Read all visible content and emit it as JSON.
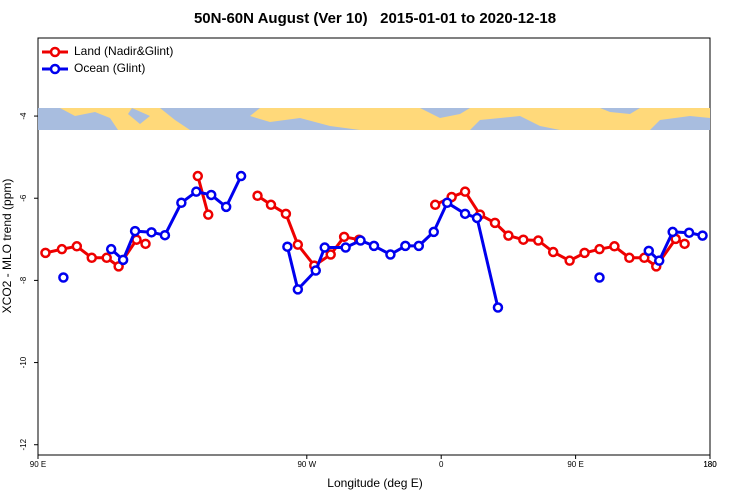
{
  "chart_data": {
    "type": "line",
    "title": "50N-60N August (Ver 10)   2015-01-01 to 2020-12-18",
    "xlabel": "Longitude (deg E)",
    "ylabel": "XCO2 - MLO trend (ppm)",
    "xlim": [
      -270,
      180
    ],
    "xticks": [
      {
        "value": -270,
        "label": "90 E"
      },
      180,
      {
        "value": -90,
        "label": "90 W"
      },
      0,
      {
        "value": 90,
        "label": "90 E"
      },
      {
        "value": 180,
        "label": "180"
      }
    ],
    "ylim": [
      -12.25,
      -2.1
    ],
    "yticks": [
      -4,
      -6,
      -8,
      -10,
      -12
    ],
    "grid": false,
    "legend": "top-left",
    "series": [
      {
        "name": "Land (Nadir&Glint)",
        "color": "#ee0000",
        "x": [
          -265,
          -254,
          -244,
          -234,
          -224,
          -216,
          -204,
          -198,
          null,
          -163,
          -156,
          null,
          -123,
          -114,
          -104,
          -96,
          -85,
          -74,
          -65,
          -55,
          null,
          -4,
          7,
          16,
          26,
          36,
          45,
          55,
          65,
          75,
          86,
          96,
          106,
          116,
          126,
          136,
          144,
          157,
          163
        ],
        "values": [
          -7.33,
          -7.24,
          -7.17,
          -7.45,
          -7.45,
          -7.66,
          -7.01,
          -7.11,
          null,
          -5.46,
          -6.4,
          null,
          -5.94,
          -6.16,
          -6.38,
          -7.13,
          -7.64,
          -7.37,
          -6.94,
          -7.01,
          null,
          -6.16,
          -5.97,
          -5.84,
          -6.4,
          -6.6,
          -6.91,
          -7.01,
          -7.03,
          -7.31,
          -7.52,
          -7.33,
          -7.24,
          -7.17,
          -7.45,
          -7.45,
          -7.66,
          -6.99,
          -7.11
        ]
      },
      {
        "name": "Ocean (Glint)",
        "color": "#0000ee",
        "x": [
          -253,
          null,
          -221,
          -213,
          -205,
          -194,
          -185,
          -174,
          -164,
          -154,
          -144,
          -134,
          null,
          -103,
          -96,
          -84,
          -78,
          -64,
          -54,
          -45,
          -34,
          -24,
          -15,
          -5,
          4,
          16,
          24,
          38,
          null,
          106,
          null,
          139,
          146,
          155,
          166,
          175
        ],
        "values": [
          -7.93,
          null,
          -7.24,
          -7.5,
          -6.8,
          -6.83,
          -6.9,
          -6.11,
          -5.84,
          -5.92,
          -6.21,
          -5.46,
          null,
          -7.18,
          -8.22,
          -7.76,
          -7.2,
          -7.2,
          -7.03,
          -7.16,
          -7.37,
          -7.16,
          -7.16,
          -6.82,
          -6.11,
          -6.38,
          -6.48,
          -8.66,
          null,
          -7.93,
          null,
          -7.28,
          -7.52,
          -6.82,
          -6.84,
          -6.91
        ]
      }
    ]
  }
}
